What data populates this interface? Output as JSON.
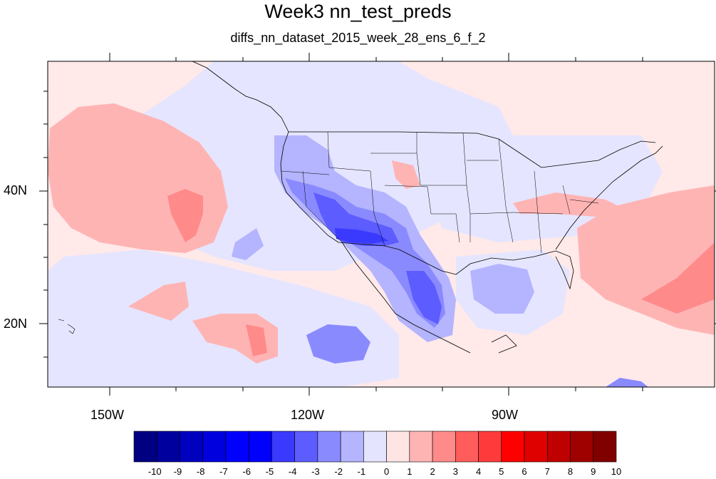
{
  "title": "Week3 nn_test_preds",
  "subtitle": "diffs_nn_dataset_2015_week_28_ens_6_f_2",
  "lat_labels": [
    "40N",
    "20N"
  ],
  "lon_labels": [
    "150W",
    "120W",
    "90W"
  ],
  "colorbar": {
    "labels": [
      "-10",
      "-9",
      "-8",
      "-7",
      "-6",
      "-5",
      "-4",
      "-3",
      "-2",
      "-1",
      "0",
      "1",
      "2",
      "3",
      "4",
      "5",
      "6",
      "7",
      "8",
      "9",
      "10"
    ],
    "colors": [
      "#000080",
      "#00009f",
      "#0000bf",
      "#0000df",
      "#0000ff",
      "#0000ff",
      "#3a3aff",
      "#5c5cff",
      "#8a8aff",
      "#b4b4ff",
      "#e4e4ff",
      "#ffe4e4",
      "#ffb4b4",
      "#ff8a8a",
      "#ff5c5c",
      "#ff3a3a",
      "#ff0000",
      "#df0000",
      "#bf0000",
      "#9f0000",
      "#800000"
    ]
  },
  "map": {
    "projection": "cylindrical equidistant",
    "lon_range": [
      -169,
      -71
    ],
    "lat_range": [
      10,
      59
    ],
    "ocean_background": "#ffe9e9",
    "neutral_negative": "#e5e5ff",
    "fields": [
      {
        "label": "Pacific warm anomaly",
        "color": "#ffb4b4"
      },
      {
        "label": "Pacific core warm anomaly",
        "color": "#ff8a8a"
      },
      {
        "label": "Southwest US cool anomaly",
        "color": "#8a8aff"
      },
      {
        "label": "Southwest US strong cool anomaly",
        "color": "#3a3aff"
      },
      {
        "label": "Atlantic warm anomaly",
        "color": "#ffb4b4"
      }
    ]
  }
}
